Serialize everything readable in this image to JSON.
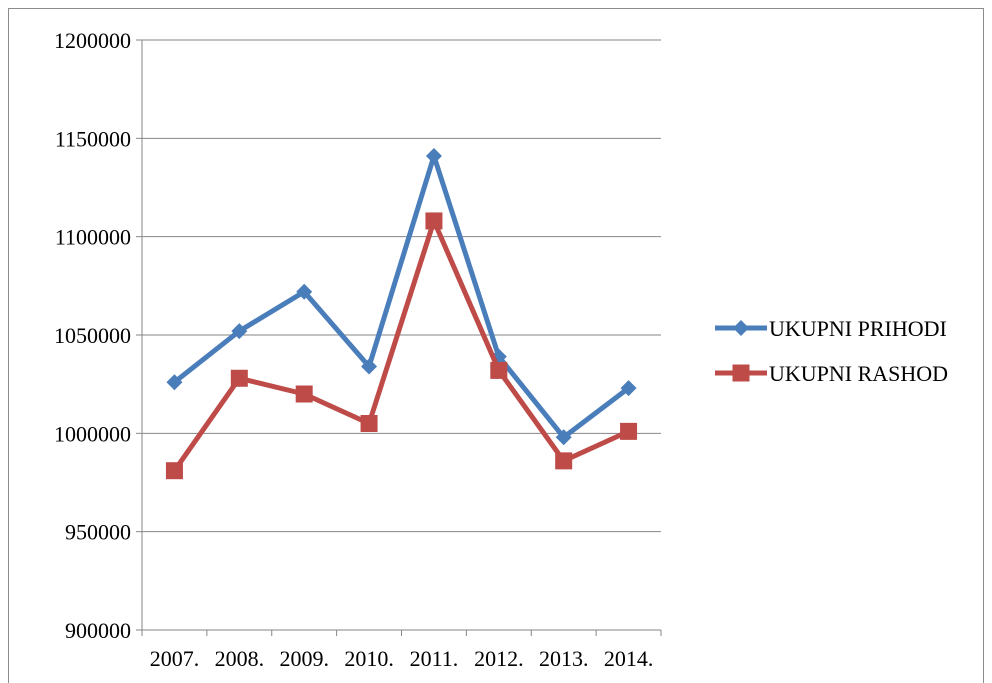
{
  "chart_data": {
    "type": "line",
    "categories": [
      "2007.",
      "2008.",
      "2009.",
      "2010.",
      "2011.",
      "2012.",
      "2013.",
      "2014."
    ],
    "series": [
      {
        "name": "UKUPNI PRIHODI",
        "color": "#4a7ebb",
        "marker": "diamond",
        "values": [
          1026000,
          1052000,
          1072000,
          1034000,
          1141000,
          1039000,
          998000,
          1023000
        ]
      },
      {
        "name": "UKUPNI RASHOD",
        "color": "#be4b48",
        "marker": "square",
        "values": [
          981000,
          1028000,
          1020000,
          1005000,
          1108000,
          1032000,
          986000,
          1001000
        ]
      }
    ],
    "ylim": [
      900000,
      1200000
    ],
    "yticks": [
      "900000",
      "950000",
      "1000000",
      "1050000",
      "1100000",
      "1150000",
      "1200000"
    ],
    "ytick_values": [
      900000,
      950000,
      1000000,
      1050000,
      1100000,
      1150000,
      1200000
    ],
    "grid": true,
    "legend_position": "right"
  }
}
